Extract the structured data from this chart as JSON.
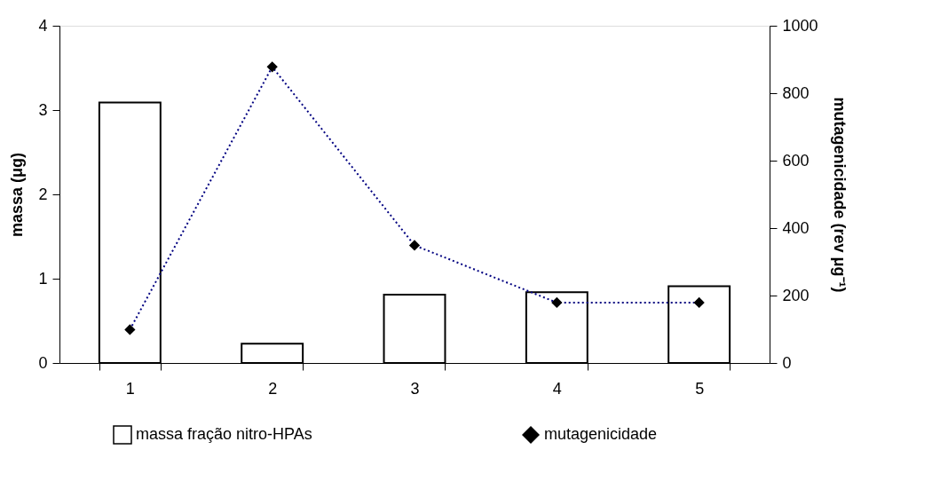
{
  "chart_data": {
    "type": "bar",
    "categories": [
      "1",
      "2",
      "3",
      "4",
      "5"
    ],
    "ylabel": "massa (μg)",
    "y2label": "mutagenicidade (rev  μg⁻¹)",
    "ylim": [
      0,
      4
    ],
    "yticks": [
      0,
      1,
      2,
      3,
      4
    ],
    "y2lim": [
      0,
      1000
    ],
    "y2ticks": [
      0,
      200,
      400,
      600,
      800,
      1000
    ],
    "series": [
      {
        "name": "massa fração nitro-HPAs",
        "color": "#ffffff",
        "values": [
          3.09,
          0.23,
          0.81,
          0.84,
          0.91
        ]
      },
      {
        "name": "mutagenicidade",
        "type": "line",
        "axis": "y2",
        "color": "#000080",
        "marker": "diamond",
        "line_style": "dotted",
        "values": [
          99,
          878,
          349,
          179,
          179
        ]
      }
    ],
    "grid": false,
    "legend": "bottom"
  }
}
